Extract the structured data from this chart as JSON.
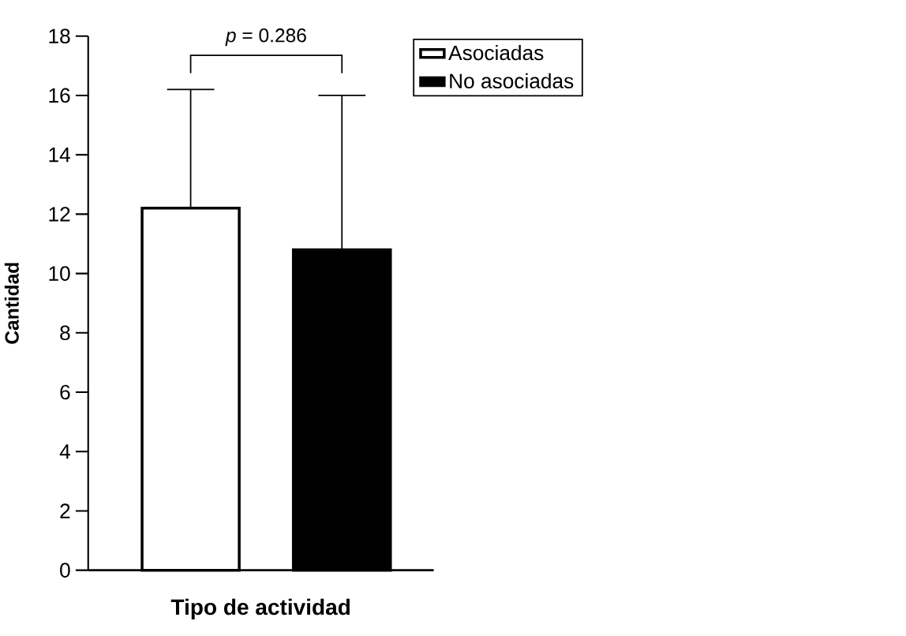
{
  "chart_data": {
    "type": "bar",
    "xlabel": "Tipo de actividad",
    "ylabel": "Cantidad",
    "categories": [
      null
    ],
    "series": [
      {
        "name": "Asociadas",
        "color": "#ffffff",
        "values": [
          12.2
        ],
        "errors": [
          [
            12.2,
            16.2
          ]
        ]
      },
      {
        "name": "No asociadas",
        "color": "#000000",
        "values": [
          10.8
        ],
        "errors": [
          [
            10.8,
            16.0
          ]
        ]
      }
    ],
    "ylim": [
      0,
      18
    ],
    "yticks": [
      0,
      2,
      4,
      6,
      8,
      10,
      12,
      14,
      16,
      18
    ],
    "grid": false,
    "legend": "top right",
    "annotations": [
      "*p* = 0.286"
    ]
  }
}
